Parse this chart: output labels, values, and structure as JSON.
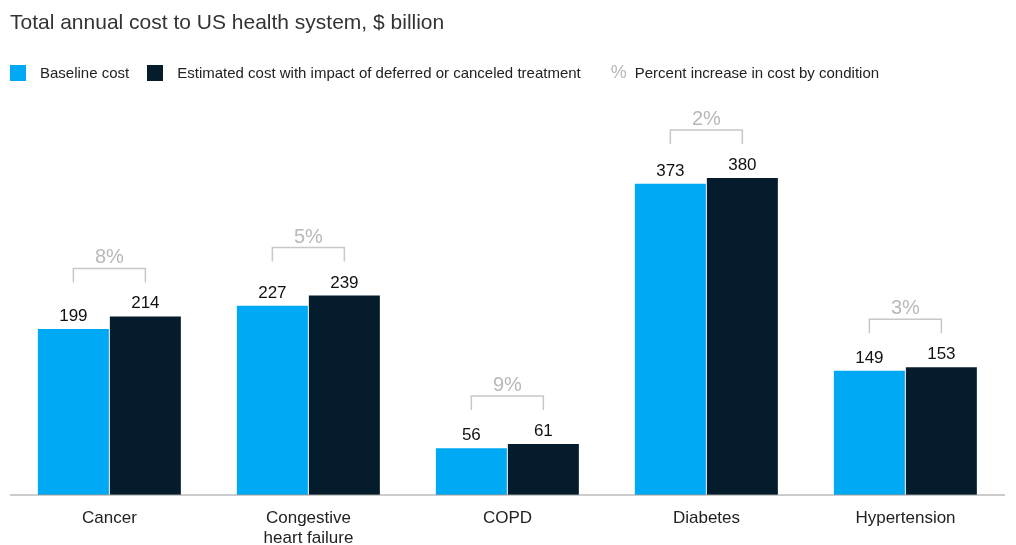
{
  "chart_data": {
    "type": "bar",
    "title": "Total annual cost to US health system, $ billion",
    "categories": [
      "Cancer",
      "Congestive heart failure",
      "COPD",
      "Diabetes",
      "Hypertension"
    ],
    "series": [
      {
        "name": "Baseline cost",
        "color": "#00a9f4",
        "values": [
          199,
          227,
          56,
          373,
          149
        ]
      },
      {
        "name": "Estimated cost with impact of deferred or canceled treatment",
        "color": "#051c2c",
        "values": [
          214,
          239,
          61,
          380,
          153
        ]
      }
    ],
    "data_labels": true,
    "legend": "top left",
    "annotations": [
      "8%",
      "5%",
      "9%",
      "2%",
      "3%",
      "% Percent increase in cost by condition"
    ]
  }
}
